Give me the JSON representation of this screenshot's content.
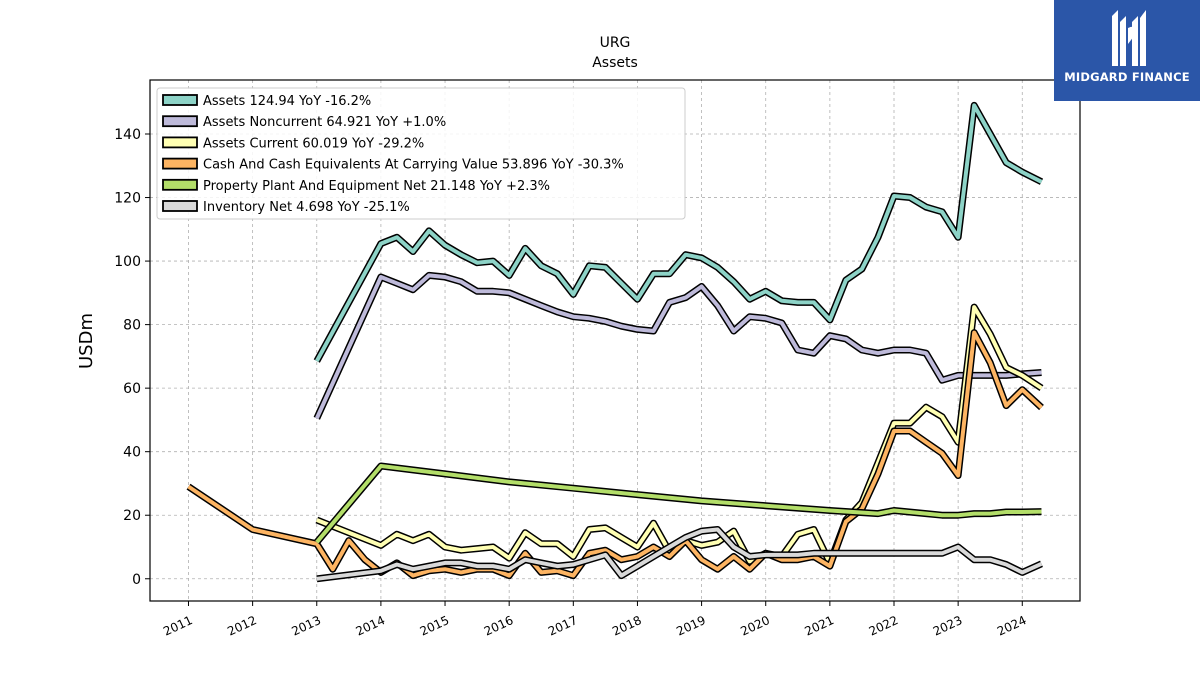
{
  "brand": {
    "name": "MIDGARD FINANCE"
  },
  "chart_data": {
    "type": "line",
    "title": "URG",
    "subtitle": "Assets",
    "ylabel": "USDm",
    "xlabel": "",
    "xlim": [
      2010.4,
      2024.9
    ],
    "ylim": [
      -7,
      157
    ],
    "x_ticks": [
      "2011",
      "2012",
      "2013",
      "2014",
      "2015",
      "2016",
      "2017",
      "2018",
      "2019",
      "2020",
      "2021",
      "2022",
      "2023",
      "2024"
    ],
    "y_ticks": [
      0,
      20,
      40,
      60,
      80,
      100,
      120,
      140
    ],
    "grid": true,
    "legend_position": "top-left",
    "series": [
      {
        "name": "Assets",
        "legend": "Assets  124.94 YoY -16.2%",
        "color": "#8dd3c7",
        "points": [
          [
            2013.0,
            68.5
          ],
          [
            2014.0,
            105.5
          ],
          [
            2014.25,
            107.5
          ],
          [
            2014.5,
            103
          ],
          [
            2014.75,
            109.5
          ],
          [
            2015.0,
            105
          ],
          [
            2015.25,
            102
          ],
          [
            2015.5,
            99.5
          ],
          [
            2015.75,
            100
          ],
          [
            2016.0,
            95.5
          ],
          [
            2016.25,
            104
          ],
          [
            2016.5,
            98.5
          ],
          [
            2016.75,
            96
          ],
          [
            2017.0,
            89.5
          ],
          [
            2017.25,
            98.5
          ],
          [
            2017.5,
            98
          ],
          [
            2017.75,
            93
          ],
          [
            2018.0,
            88
          ],
          [
            2018.25,
            96
          ],
          [
            2018.5,
            96
          ],
          [
            2018.75,
            102
          ],
          [
            2019.0,
            101
          ],
          [
            2019.25,
            98
          ],
          [
            2019.5,
            93.5
          ],
          [
            2019.75,
            88
          ],
          [
            2020.0,
            90.5
          ],
          [
            2020.25,
            87.5
          ],
          [
            2020.5,
            87
          ],
          [
            2020.75,
            87
          ],
          [
            2021.0,
            81.5
          ],
          [
            2021.25,
            94
          ],
          [
            2021.5,
            97.5
          ],
          [
            2021.75,
            107.5
          ],
          [
            2022.0,
            120.5
          ],
          [
            2022.25,
            120
          ],
          [
            2022.5,
            117
          ],
          [
            2022.75,
            115.5
          ],
          [
            2023.0,
            107.5
          ],
          [
            2023.25,
            149
          ],
          [
            2023.5,
            140
          ],
          [
            2023.75,
            131
          ],
          [
            2024.0,
            128
          ],
          [
            2024.3,
            124.94
          ]
        ]
      },
      {
        "name": "Assets Noncurrent",
        "legend": "Assets Noncurrent  64.921 YoY +1.0%",
        "color": "#bebada",
        "points": [
          [
            2013.0,
            50.5
          ],
          [
            2014.0,
            95
          ],
          [
            2014.25,
            93
          ],
          [
            2014.5,
            91
          ],
          [
            2014.75,
            95.5
          ],
          [
            2015.0,
            95
          ],
          [
            2015.25,
            93.5
          ],
          [
            2015.5,
            90.5
          ],
          [
            2015.75,
            90.5
          ],
          [
            2016.0,
            90
          ],
          [
            2016.25,
            88
          ],
          [
            2016.5,
            86
          ],
          [
            2016.75,
            84
          ],
          [
            2017.0,
            82.5
          ],
          [
            2017.25,
            82
          ],
          [
            2017.5,
            81
          ],
          [
            2017.75,
            79.5
          ],
          [
            2018.0,
            78.5
          ],
          [
            2018.25,
            78
          ],
          [
            2018.5,
            87
          ],
          [
            2018.75,
            88.5
          ],
          [
            2019.0,
            92
          ],
          [
            2019.25,
            86
          ],
          [
            2019.5,
            78
          ],
          [
            2019.75,
            82.5
          ],
          [
            2020.0,
            82
          ],
          [
            2020.25,
            80.5
          ],
          [
            2020.5,
            72
          ],
          [
            2020.75,
            71
          ],
          [
            2021.0,
            76.5
          ],
          [
            2021.25,
            75.5
          ],
          [
            2021.5,
            72
          ],
          [
            2021.75,
            71
          ],
          [
            2022.0,
            72
          ],
          [
            2022.25,
            72
          ],
          [
            2022.5,
            71
          ],
          [
            2022.75,
            62.5
          ],
          [
            2023.0,
            64
          ],
          [
            2023.25,
            64
          ],
          [
            2023.5,
            64
          ],
          [
            2023.75,
            64
          ],
          [
            2024.0,
            64.5
          ],
          [
            2024.3,
            64.921
          ]
        ]
      },
      {
        "name": "Assets Current",
        "legend": "Assets Current  60.019 YoY -29.2%",
        "color": "#ffffb3",
        "points": [
          [
            2013.0,
            18.5
          ],
          [
            2014.0,
            10.5
          ],
          [
            2014.25,
            14
          ],
          [
            2014.5,
            12
          ],
          [
            2014.75,
            14
          ],
          [
            2015.0,
            10
          ],
          [
            2015.25,
            9
          ],
          [
            2015.5,
            9.5
          ],
          [
            2015.75,
            10
          ],
          [
            2016.0,
            6.5
          ],
          [
            2016.25,
            14.5
          ],
          [
            2016.5,
            11
          ],
          [
            2016.75,
            11
          ],
          [
            2017.0,
            7
          ],
          [
            2017.25,
            15.5
          ],
          [
            2017.5,
            16
          ],
          [
            2017.75,
            13
          ],
          [
            2018.0,
            10
          ],
          [
            2018.25,
            17.5
          ],
          [
            2018.5,
            8.5
          ],
          [
            2018.75,
            12
          ],
          [
            2019.0,
            10.5
          ],
          [
            2019.25,
            11.5
          ],
          [
            2019.5,
            15
          ],
          [
            2019.75,
            5.5
          ],
          [
            2020.0,
            8
          ],
          [
            2020.25,
            7
          ],
          [
            2020.5,
            14
          ],
          [
            2020.75,
            15.5
          ],
          [
            2021.0,
            5
          ],
          [
            2021.25,
            18.5
          ],
          [
            2021.5,
            24
          ],
          [
            2021.75,
            36.5
          ],
          [
            2022.0,
            49
          ],
          [
            2022.25,
            49
          ],
          [
            2022.5,
            54
          ],
          [
            2022.75,
            51
          ],
          [
            2023.0,
            43
          ],
          [
            2023.25,
            85.5
          ],
          [
            2023.5,
            77
          ],
          [
            2023.75,
            66.5
          ],
          [
            2024.0,
            64
          ],
          [
            2024.3,
            60.019
          ]
        ]
      },
      {
        "name": "Cash And Cash Equivalents At Carrying Value",
        "legend": "Cash And Cash Equivalents At Carrying Value  53.896 YoY -30.3%",
        "color": "#fdb462",
        "points": [
          [
            2011.0,
            29
          ],
          [
            2012.0,
            15.5
          ],
          [
            2013.0,
            11
          ],
          [
            2013.25,
            3
          ],
          [
            2013.5,
            12
          ],
          [
            2013.75,
            6
          ],
          [
            2014.0,
            2
          ],
          [
            2014.25,
            5
          ],
          [
            2014.5,
            1
          ],
          [
            2014.75,
            2.5
          ],
          [
            2015.0,
            3
          ],
          [
            2015.25,
            2
          ],
          [
            2015.5,
            3
          ],
          [
            2015.75,
            3
          ],
          [
            2016.0,
            1
          ],
          [
            2016.25,
            8
          ],
          [
            2016.5,
            2
          ],
          [
            2016.75,
            2.5
          ],
          [
            2017.0,
            1
          ],
          [
            2017.25,
            8
          ],
          [
            2017.5,
            9
          ],
          [
            2017.75,
            6
          ],
          [
            2018.0,
            7
          ],
          [
            2018.25,
            10
          ],
          [
            2018.5,
            7
          ],
          [
            2018.75,
            12
          ],
          [
            2019.0,
            6
          ],
          [
            2019.25,
            3
          ],
          [
            2019.5,
            7
          ],
          [
            2019.75,
            3
          ],
          [
            2020.0,
            8
          ],
          [
            2020.25,
            6
          ],
          [
            2020.5,
            6
          ],
          [
            2020.75,
            7
          ],
          [
            2021.0,
            4
          ],
          [
            2021.25,
            18
          ],
          [
            2021.5,
            22
          ],
          [
            2021.75,
            33
          ],
          [
            2022.0,
            46.5
          ],
          [
            2022.25,
            46.5
          ],
          [
            2022.5,
            43
          ],
          [
            2022.75,
            39.5
          ],
          [
            2023.0,
            32.5
          ],
          [
            2023.25,
            77.5
          ],
          [
            2023.5,
            68
          ],
          [
            2023.75,
            54.5
          ],
          [
            2024.0,
            59.5
          ],
          [
            2024.3,
            53.896
          ]
        ]
      },
      {
        "name": "Property Plant And Equipment Net",
        "legend": "Property Plant And Equipment Net  21.148 YoY +2.3%",
        "color": "#b3de69",
        "points": [
          [
            2013.0,
            11.5
          ],
          [
            2014.0,
            35.5
          ],
          [
            2015.0,
            33
          ],
          [
            2016.0,
            30.5
          ],
          [
            2017.0,
            28.5
          ],
          [
            2018.0,
            26.5
          ],
          [
            2019.0,
            24.5
          ],
          [
            2020.0,
            23
          ],
          [
            2021.0,
            21.5
          ],
          [
            2021.75,
            20.5
          ],
          [
            2022.0,
            21.5
          ],
          [
            2022.5,
            20.5
          ],
          [
            2022.75,
            20
          ],
          [
            2023.0,
            20
          ],
          [
            2023.25,
            20.5
          ],
          [
            2023.5,
            20.5
          ],
          [
            2023.75,
            21
          ],
          [
            2024.0,
            21
          ],
          [
            2024.3,
            21.148
          ]
        ]
      },
      {
        "name": "Inventory Net",
        "legend": "Inventory Net  4.698 YoY -25.1%",
        "color": "#d9d9d9",
        "points": [
          [
            2013.0,
            0
          ],
          [
            2014.0,
            2.5
          ],
          [
            2014.25,
            4.5
          ],
          [
            2014.5,
            3
          ],
          [
            2014.75,
            4
          ],
          [
            2015.0,
            5
          ],
          [
            2015.25,
            5
          ],
          [
            2015.5,
            4
          ],
          [
            2015.75,
            4
          ],
          [
            2016.0,
            3
          ],
          [
            2016.25,
            6
          ],
          [
            2016.5,
            5
          ],
          [
            2016.75,
            4
          ],
          [
            2017.0,
            4.5
          ],
          [
            2017.25,
            6
          ],
          [
            2017.5,
            7.5
          ],
          [
            2017.75,
            1
          ],
          [
            2018.0,
            4
          ],
          [
            2018.25,
            7
          ],
          [
            2018.5,
            10
          ],
          [
            2018.75,
            13
          ],
          [
            2019.0,
            15
          ],
          [
            2019.25,
            15.5
          ],
          [
            2019.5,
            10
          ],
          [
            2019.75,
            7
          ],
          [
            2020.0,
            7.5
          ],
          [
            2020.25,
            7.5
          ],
          [
            2020.5,
            7.5
          ],
          [
            2020.75,
            8
          ],
          [
            2021.0,
            8
          ],
          [
            2021.25,
            8
          ],
          [
            2021.5,
            8
          ],
          [
            2021.75,
            8
          ],
          [
            2022.0,
            8
          ],
          [
            2022.25,
            8
          ],
          [
            2022.5,
            8
          ],
          [
            2022.75,
            8
          ],
          [
            2023.0,
            10
          ],
          [
            2023.25,
            6
          ],
          [
            2023.5,
            6
          ],
          [
            2023.75,
            4.5
          ],
          [
            2024.0,
            2
          ],
          [
            2024.3,
            4.698
          ]
        ]
      }
    ]
  }
}
